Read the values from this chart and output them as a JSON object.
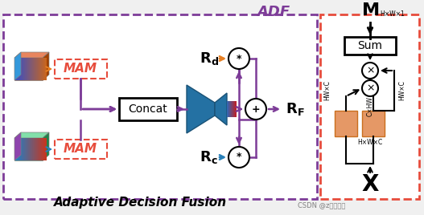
{
  "bg_color": "#f0f0f0",
  "main_border_color": "#9b59b6",
  "right_border_color": "#e74c3c",
  "title_adf": "ADF",
  "title_bottom": "Adaptive Decision Fusion",
  "title_x": "X",
  "title_m": "M",
  "watermark": "CSDN @z的小穗禾",
  "purple": "#7d3c98",
  "orange": "#e67e22",
  "blue": "#2980b9",
  "red": "#e74c3c",
  "dark": "#1a1a1a",
  "teal": "#1abc9c"
}
